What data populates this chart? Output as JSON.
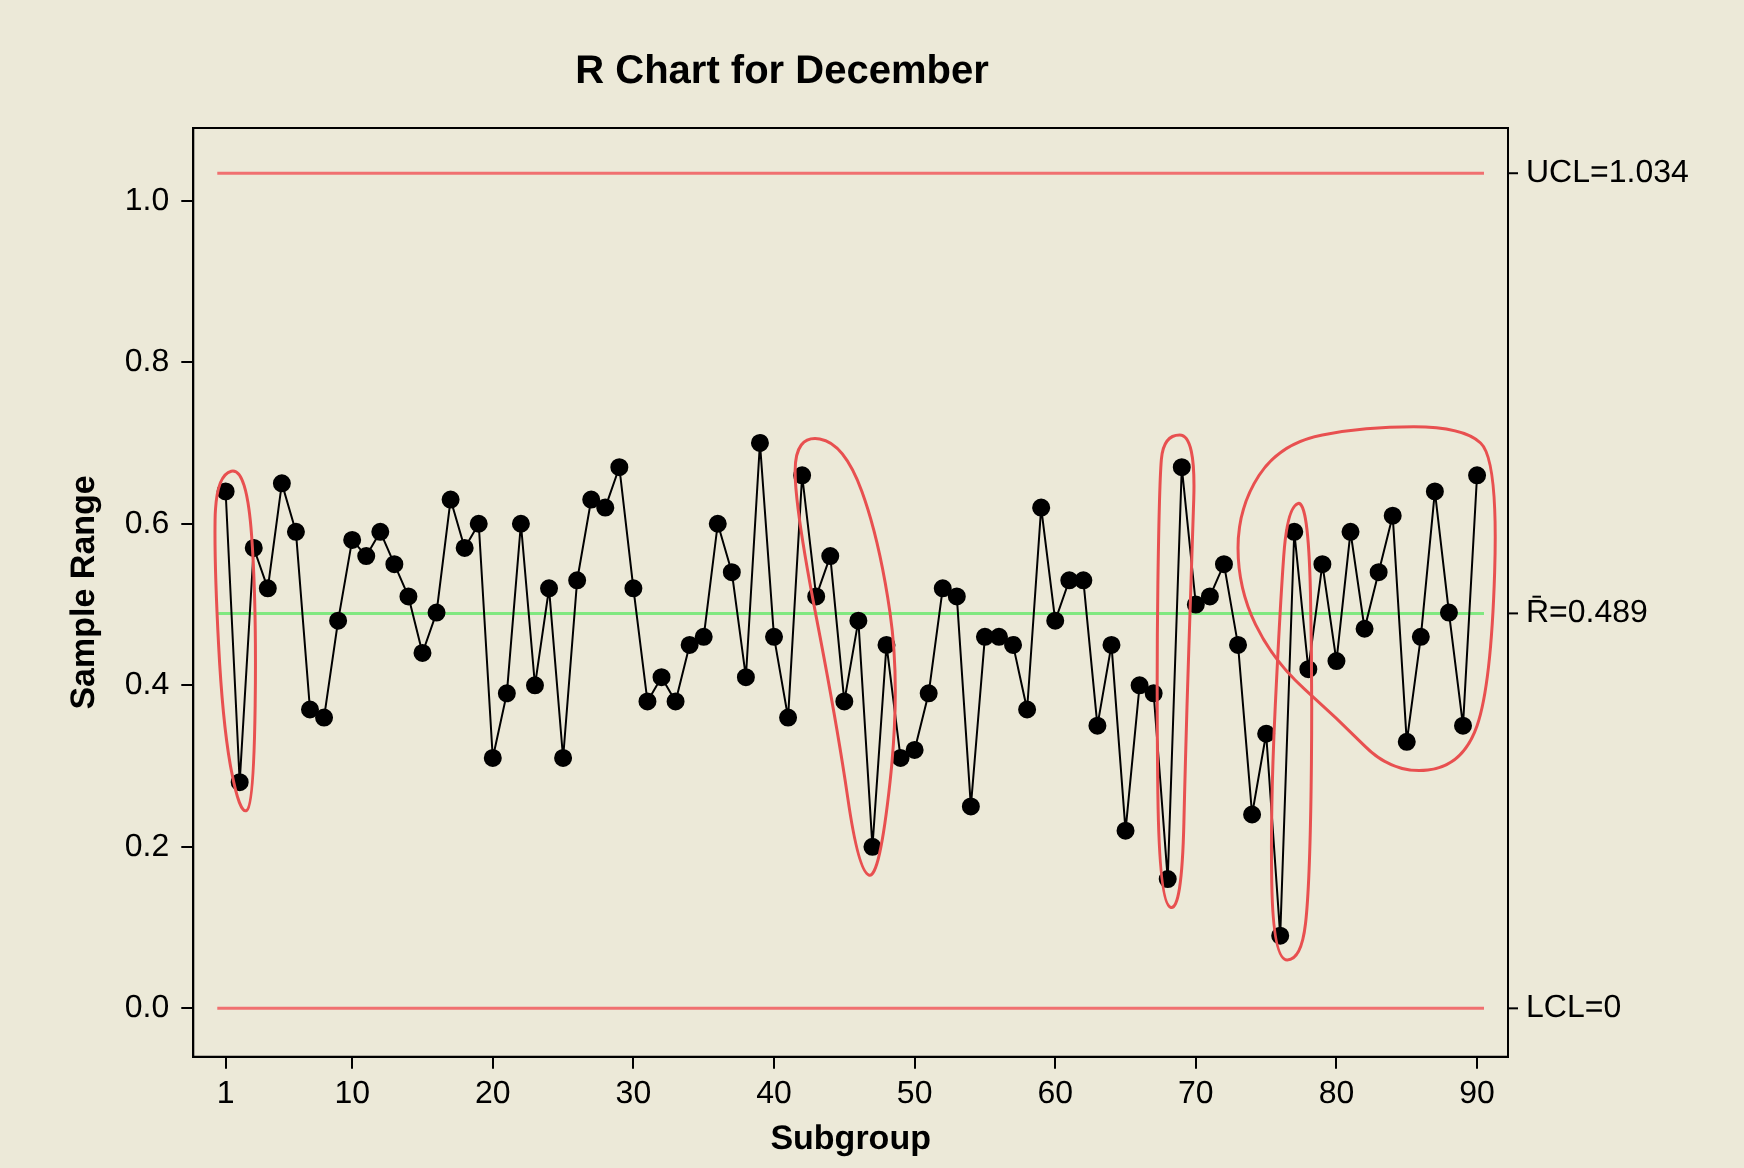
{
  "chart_data": {
    "type": "line",
    "title": "R Chart for December",
    "xlabel": "Subgroup",
    "ylabel": "Sample Range",
    "x": [
      1,
      2,
      3,
      4,
      5,
      6,
      7,
      8,
      9,
      10,
      11,
      12,
      13,
      14,
      15,
      16,
      17,
      18,
      19,
      20,
      21,
      22,
      23,
      24,
      25,
      26,
      27,
      28,
      29,
      30,
      31,
      32,
      33,
      34,
      35,
      36,
      37,
      38,
      39,
      40,
      41,
      42,
      43,
      44,
      45,
      46,
      47,
      48,
      49,
      50,
      51,
      52,
      53,
      54,
      55,
      56,
      57,
      58,
      59,
      60,
      61,
      62,
      63,
      64,
      65,
      66,
      67,
      68,
      69,
      70,
      71,
      72,
      73,
      74,
      75,
      76,
      77,
      78,
      79,
      80,
      81,
      82,
      83,
      84,
      85,
      86,
      87,
      88,
      89,
      90
    ],
    "series": [
      {
        "color": "#000000",
        "values": [
          0.64,
          0.28,
          0.57,
          0.52,
          0.65,
          0.59,
          0.37,
          0.36,
          0.48,
          0.58,
          0.56,
          0.59,
          0.55,
          0.51,
          0.44,
          0.49,
          0.63,
          0.57,
          0.6,
          0.31,
          0.39,
          0.6,
          0.4,
          0.52,
          0.31,
          0.53,
          0.63,
          0.62,
          0.67,
          0.52,
          0.38,
          0.41,
          0.38,
          0.45,
          0.46,
          0.6,
          0.54,
          0.41,
          0.7,
          0.46,
          0.36,
          0.66,
          0.51,
          0.56,
          0.38,
          0.48,
          0.2,
          0.45,
          0.31,
          0.32,
          0.39,
          0.52,
          0.51,
          0.25,
          0.46,
          0.46,
          0.45,
          0.37,
          0.62,
          0.48,
          0.53,
          0.53,
          0.35,
          0.45,
          0.22,
          0.4,
          0.39,
          0.16,
          0.67,
          0.5,
          0.51,
          0.55,
          0.45,
          0.24,
          0.34,
          0.09,
          0.59,
          0.42,
          0.55,
          0.43,
          0.59,
          0.47,
          0.54,
          0.61,
          0.33,
          0.46,
          0.64,
          0.49,
          0.35,
          0.66
        ]
      }
    ],
    "xlim": [
      -1.3,
      92.2
    ],
    "xticks": [
      1,
      10,
      20,
      30,
      40,
      50,
      60,
      70,
      80,
      90
    ],
    "ylim": [
      -0.06,
      1.09
    ],
    "yticks": [
      {
        "value": 0,
        "label": "0.0"
      },
      0.2,
      0.4,
      0.6,
      0.8,
      {
        "value": 1,
        "label": "1.0"
      }
    ],
    "ref_lines": [
      {
        "axis": "y",
        "value": 1.034,
        "label": "UCL=1.034",
        "color": "#f07070"
      },
      {
        "axis": "y",
        "value": 0.489,
        "label": "R̄=0.489",
        "color": "#80e880"
      },
      {
        "axis": "y",
        "value": 0,
        "label": "LCL=0",
        "color": "#f07070"
      }
    ],
    "grid": false,
    "legend": false,
    "marker": "circle",
    "line_style": "solid"
  }
}
